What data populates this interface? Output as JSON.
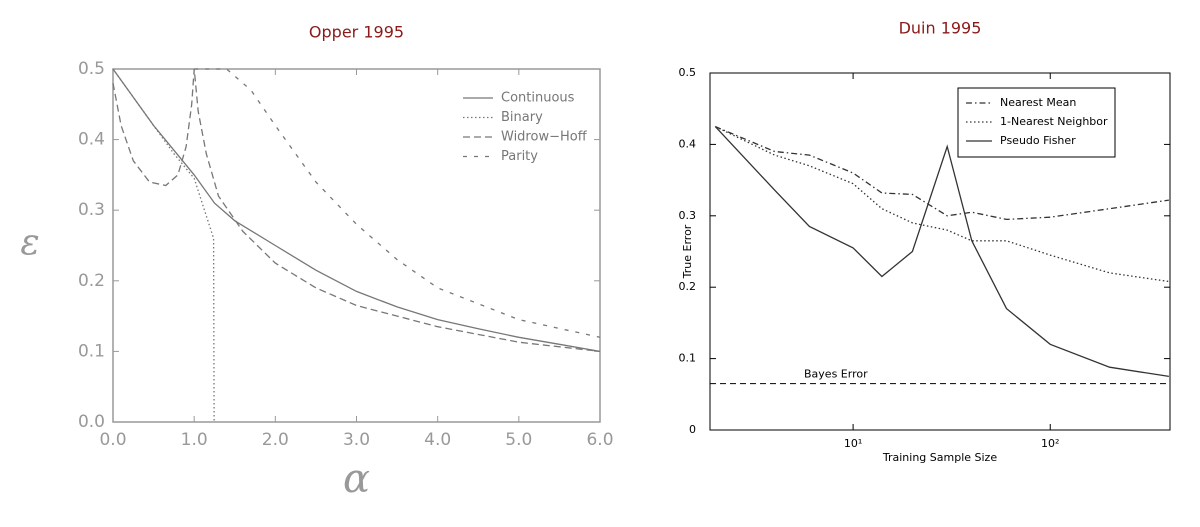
{
  "chart_data": [
    {
      "type": "line",
      "title": "Opper 1995",
      "xlabel": "α",
      "ylabel": "ε",
      "xlim": [
        0,
        6
      ],
      "ylim": [
        0,
        0.5
      ],
      "xticks": [
        {
          "value": 0,
          "label": "0.0"
        },
        {
          "value": 1,
          "label": "1.0"
        },
        {
          "value": 2,
          "label": "2.0"
        },
        {
          "value": 3,
          "label": "3.0"
        },
        {
          "value": 4,
          "label": "4.0"
        },
        {
          "value": 5,
          "label": "5.0"
        },
        {
          "value": 6,
          "label": "6.0"
        }
      ],
      "yticks": [
        {
          "value": 0,
          "label": "0.0"
        },
        0.1,
        0.2,
        0.3,
        0.4,
        0.5
      ],
      "series": [
        {
          "name": "Continuous",
          "color": "#777777",
          "dash": "solid",
          "x": [
            0,
            0.25,
            0.5,
            0.75,
            1,
            1.25,
            1.5,
            2,
            2.5,
            3,
            3.5,
            4,
            4.5,
            5,
            5.5,
            6
          ],
          "values": [
            0.5,
            0.46,
            0.42,
            0.385,
            0.35,
            0.31,
            0.285,
            0.25,
            0.215,
            0.185,
            0.163,
            0.145,
            0.132,
            0.12,
            0.11,
            0.1
          ]
        },
        {
          "name": "Binary",
          "color": "#777777",
          "dash": "dotted",
          "x": [
            0,
            0.25,
            0.5,
            0.75,
            1,
            1.24,
            1.245
          ],
          "values": [
            0.5,
            0.46,
            0.42,
            0.38,
            0.345,
            0.26,
            0
          ]
        },
        {
          "name": "Widrow−Hoff",
          "color": "#777777",
          "dash": "dashed",
          "x": [
            0,
            0.1,
            0.25,
            0.45,
            0.65,
            0.8,
            0.9,
            0.97,
            1,
            1.05,
            1.15,
            1.3,
            1.6,
            2,
            2.5,
            3,
            4,
            5,
            6
          ],
          "values": [
            0.48,
            0.42,
            0.37,
            0.34,
            0.335,
            0.35,
            0.39,
            0.45,
            0.5,
            0.44,
            0.38,
            0.32,
            0.27,
            0.225,
            0.19,
            0.165,
            0.135,
            0.113,
            0.1
          ]
        },
        {
          "name": "Parity",
          "color": "#777777",
          "dash": "sparse",
          "x": [
            1,
            1.4,
            1.7,
            2,
            2.5,
            3,
            3.5,
            4,
            5,
            6
          ],
          "values": [
            0.5,
            0.5,
            0.47,
            0.42,
            0.34,
            0.28,
            0.23,
            0.19,
            0.145,
            0.12
          ]
        }
      ]
    },
    {
      "type": "line",
      "title": "Duin 1995",
      "xlabel": "Training Sample Size",
      "ylabel": "True Error",
      "xscale": "log",
      "xlim": [
        1.88,
        405
      ],
      "ylim": [
        0,
        0.5
      ],
      "xticks": [
        {
          "value": 10,
          "label": "10¹"
        },
        {
          "value": 100,
          "label": "10²"
        }
      ],
      "yticks": [
        0,
        0.1,
        0.2,
        0.3,
        0.4,
        0.5
      ],
      "reference_line": {
        "label": "Bayes Error",
        "value": 0.065
      },
      "series": [
        {
          "name": "Nearest Mean",
          "color": "#333333",
          "dash": "dashdot",
          "x": [
            2,
            4,
            6,
            10,
            14,
            20,
            30,
            40,
            60,
            100,
            200,
            400
          ],
          "values": [
            0.425,
            0.39,
            0.385,
            0.36,
            0.332,
            0.33,
            0.3,
            0.305,
            0.295,
            0.298,
            0.31,
            0.322
          ]
        },
        {
          "name": "1-Nearest Neighbor",
          "color": "#333333",
          "dash": "dotted",
          "x": [
            2,
            4,
            6,
            10,
            14,
            20,
            30,
            40,
            60,
            100,
            200,
            400
          ],
          "values": [
            0.425,
            0.385,
            0.37,
            0.345,
            0.31,
            0.29,
            0.28,
            0.265,
            0.265,
            0.245,
            0.22,
            0.208
          ]
        },
        {
          "name": "Pseudo Fisher",
          "color": "#333333",
          "dash": "solid",
          "x": [
            2,
            4,
            6,
            10,
            14,
            20,
            30,
            40,
            60,
            100,
            200,
            400
          ],
          "values": [
            0.425,
            0.336,
            0.285,
            0.255,
            0.215,
            0.25,
            0.397,
            0.265,
            0.17,
            0.12,
            0.088,
            0.075
          ]
        }
      ]
    }
  ]
}
